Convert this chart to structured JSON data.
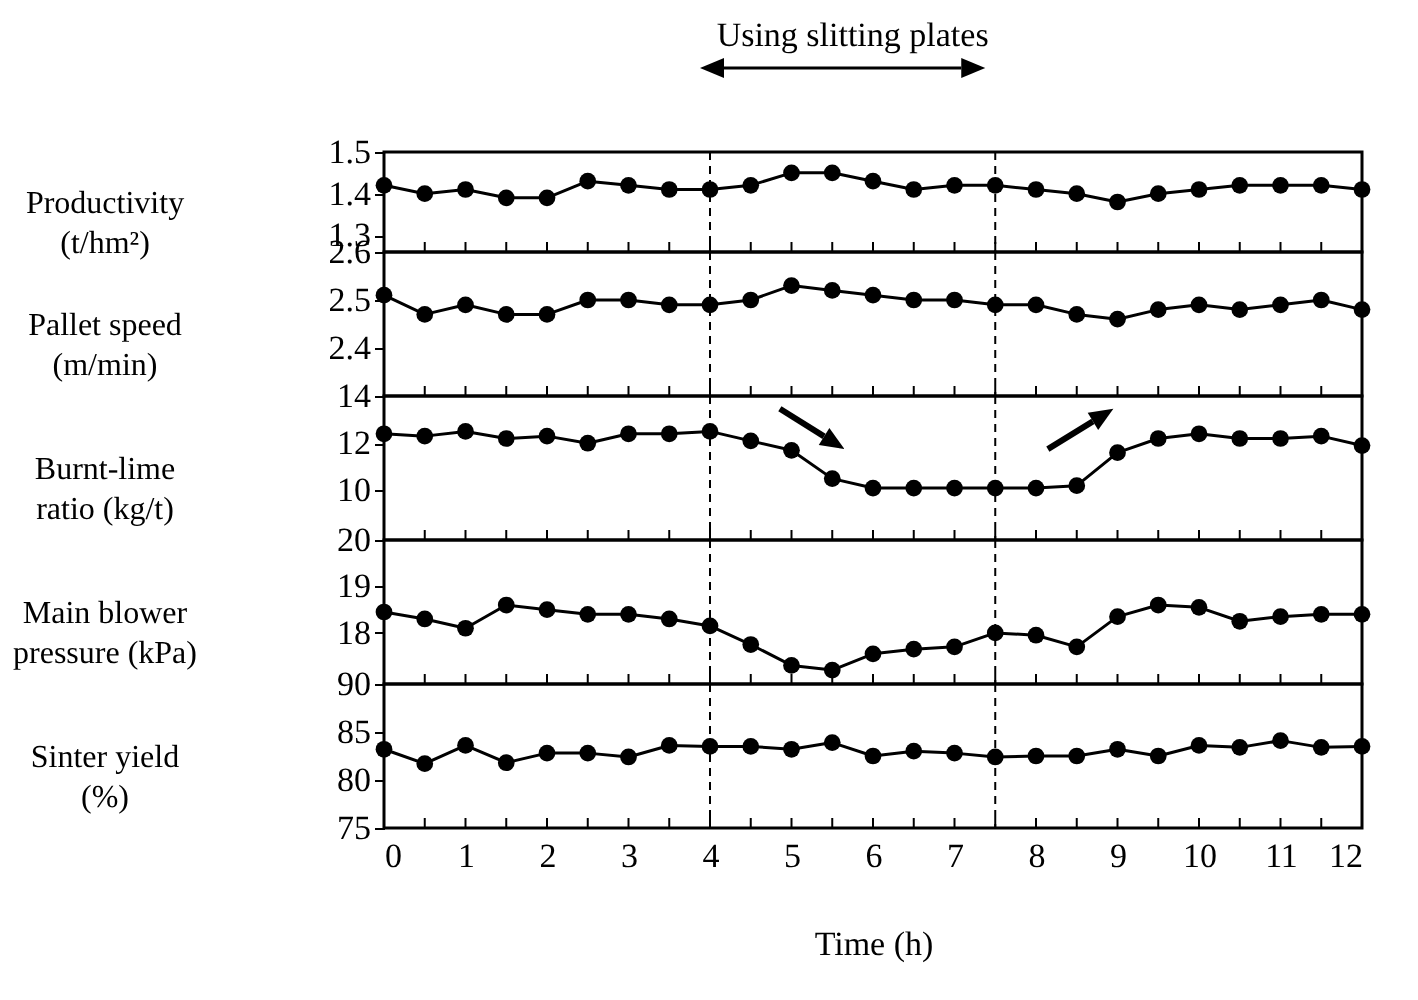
{
  "chart_data": [
    {
      "type": "line",
      "ylabel": "Productivity (t/hm²)",
      "annotations": [
        "Using slitting plates"
      ],
      "tick_labels": "y",
      "marker": "circle",
      "line_style": "solid",
      "xlim": [
        0,
        12
      ],
      "xticks": [
        0,
        {
          "value": 0.5,
          "label": null
        },
        1,
        {
          "value": 1.5,
          "label": null
        },
        2,
        {
          "value": 2.5,
          "label": null
        },
        3,
        {
          "value": 3.5,
          "label": null
        },
        4,
        {
          "value": 4.5,
          "label": null
        },
        5,
        {
          "value": 5.5,
          "label": null
        },
        6,
        {
          "value": 6.5,
          "label": null
        },
        7,
        {
          "value": 7.5,
          "label": null
        },
        8,
        {
          "value": 8.5,
          "label": null
        },
        9,
        {
          "value": 9.5,
          "label": null
        },
        10,
        {
          "value": 10.5,
          "label": null
        },
        11,
        {
          "value": 11.5,
          "label": null
        },
        12
      ],
      "ylim": [
        1.26,
        1.5
      ],
      "yticks": [
        1.3,
        1.4,
        1.5
      ],
      "ref_lines": [
        {
          "axis": "x",
          "value": 4,
          "line_style": "dashed"
        },
        {
          "axis": "x",
          "value": 7.5,
          "line_style": "dashed"
        }
      ],
      "x": [
        0,
        0.5,
        1,
        1.5,
        2,
        2.5,
        3,
        3.5,
        4,
        4.5,
        5,
        5.5,
        6,
        6.5,
        7,
        7.5,
        8,
        8.5,
        9,
        9.5,
        10,
        10.5,
        11,
        11.5,
        12
      ],
      "series": [
        {
          "color": "#000000",
          "values": [
            1.42,
            1.4,
            1.41,
            1.39,
            1.39,
            1.43,
            1.42,
            1.41,
            1.41,
            1.42,
            1.45,
            1.45,
            1.43,
            1.41,
            1.42,
            1.42,
            1.41,
            1.4,
            1.38,
            1.4,
            1.41,
            1.42,
            1.42,
            1.42,
            1.41
          ]
        }
      ]
    },
    {
      "type": "line",
      "ylabel": "Pallet speed (m/min)",
      "tick_labels": "y",
      "marker": "circle",
      "line_style": "solid",
      "xlim": [
        0,
        12
      ],
      "xticks": [
        0,
        {
          "value": 0.5,
          "label": null
        },
        1,
        {
          "value": 1.5,
          "label": null
        },
        2,
        {
          "value": 2.5,
          "label": null
        },
        3,
        {
          "value": 3.5,
          "label": null
        },
        4,
        {
          "value": 4.5,
          "label": null
        },
        5,
        {
          "value": 5.5,
          "label": null
        },
        6,
        {
          "value": 6.5,
          "label": null
        },
        7,
        {
          "value": 7.5,
          "label": null
        },
        8,
        {
          "value": 8.5,
          "label": null
        },
        9,
        {
          "value": 9.5,
          "label": null
        },
        10,
        {
          "value": 10.5,
          "label": null
        },
        11,
        {
          "value": 11.5,
          "label": null
        },
        12
      ],
      "ylim": [
        2.3,
        2.6
      ],
      "yticks": [
        2.4,
        2.5,
        2.6
      ],
      "ref_lines": [
        {
          "axis": "x",
          "value": 4,
          "line_style": "dashed"
        },
        {
          "axis": "x",
          "value": 7.5,
          "line_style": "dashed"
        }
      ],
      "x": [
        0,
        0.5,
        1,
        1.5,
        2,
        2.5,
        3,
        3.5,
        4,
        4.5,
        5,
        5.5,
        6,
        6.5,
        7,
        7.5,
        8,
        8.5,
        9,
        9.5,
        10,
        10.5,
        11,
        11.5,
        12
      ],
      "series": [
        {
          "color": "#000000",
          "values": [
            2.51,
            2.47,
            2.49,
            2.47,
            2.47,
            2.5,
            2.5,
            2.49,
            2.49,
            2.5,
            2.53,
            2.52,
            2.51,
            2.5,
            2.5,
            2.49,
            2.49,
            2.47,
            2.46,
            2.48,
            2.49,
            2.48,
            2.49,
            2.5,
            2.48
          ]
        }
      ]
    },
    {
      "type": "line",
      "ylabel": "Burnt-lime ratio (kg/t)",
      "tick_labels": "y",
      "marker": "circle",
      "line_style": "solid",
      "xlim": [
        0,
        12
      ],
      "xticks": [
        0,
        {
          "value": 0.5,
          "label": null
        },
        1,
        {
          "value": 1.5,
          "label": null
        },
        2,
        {
          "value": 2.5,
          "label": null
        },
        3,
        {
          "value": 3.5,
          "label": null
        },
        4,
        {
          "value": 4.5,
          "label": null
        },
        5,
        {
          "value": 5.5,
          "label": null
        },
        6,
        {
          "value": 6.5,
          "label": null
        },
        7,
        {
          "value": 7.5,
          "label": null
        },
        8,
        {
          "value": 8.5,
          "label": null
        },
        9,
        {
          "value": 9.5,
          "label": null
        },
        10,
        {
          "value": 10.5,
          "label": null
        },
        11,
        {
          "value": 11.5,
          "label": null
        },
        12
      ],
      "ylim": [
        7.9,
        14
      ],
      "yticks": [
        10,
        12,
        14
      ],
      "ref_lines": [
        {
          "axis": "x",
          "value": 4,
          "line_style": "dashed"
        },
        {
          "axis": "x",
          "value": 7.5,
          "line_style": "dashed"
        }
      ],
      "x": [
        0,
        0.5,
        1,
        1.5,
        2,
        2.5,
        3,
        3.5,
        4,
        4.5,
        5,
        5.5,
        6,
        6.5,
        7,
        7.5,
        8,
        8.5,
        9,
        9.5,
        10,
        10.5,
        11,
        11.5,
        12
      ],
      "series": [
        {
          "color": "#000000",
          "values": [
            12.4,
            12.3,
            12.5,
            12.2,
            12.3,
            12.0,
            12.4,
            12.4,
            12.5,
            12.1,
            11.7,
            10.5,
            10.1,
            10.1,
            10.1,
            10.1,
            10.1,
            10.2,
            11.6,
            12.2,
            12.4,
            12.2,
            12.2,
            12.3,
            11.9
          ]
        }
      ]
    },
    {
      "type": "line",
      "ylabel": "Main blower pressure (kPa)",
      "tick_labels": "y",
      "marker": "circle",
      "line_style": "solid",
      "xlim": [
        0,
        12
      ],
      "xticks": [
        0,
        {
          "value": 0.5,
          "label": null
        },
        1,
        {
          "value": 1.5,
          "label": null
        },
        2,
        {
          "value": 2.5,
          "label": null
        },
        3,
        {
          "value": 3.5,
          "label": null
        },
        4,
        {
          "value": 4.5,
          "label": null
        },
        5,
        {
          "value": 5.5,
          "label": null
        },
        6,
        {
          "value": 6.5,
          "label": null
        },
        7,
        {
          "value": 7.5,
          "label": null
        },
        8,
        {
          "value": 8.5,
          "label": null
        },
        9,
        {
          "value": 9.5,
          "label": null
        },
        10,
        {
          "value": 10.5,
          "label": null
        },
        11,
        {
          "value": 11.5,
          "label": null
        },
        12
      ],
      "ylim": [
        16.9,
        20
      ],
      "yticks": [
        18,
        19,
        20
      ],
      "ref_lines": [
        {
          "axis": "x",
          "value": 4,
          "line_style": "dashed"
        },
        {
          "axis": "x",
          "value": 7.5,
          "line_style": "dashed"
        }
      ],
      "x": [
        0,
        0.5,
        1,
        1.5,
        2,
        2.5,
        3,
        3.5,
        4,
        4.5,
        5,
        5.5,
        6,
        6.5,
        7,
        7.5,
        8,
        8.5,
        9,
        9.5,
        10,
        10.5,
        11,
        11.5,
        12
      ],
      "series": [
        {
          "color": "#000000",
          "values": [
            18.45,
            18.3,
            18.1,
            18.6,
            18.5,
            18.4,
            18.4,
            18.3,
            18.15,
            17.75,
            17.3,
            17.2,
            17.55,
            17.65,
            17.7,
            18.0,
            17.95,
            17.7,
            18.35,
            18.6,
            18.55,
            18.25,
            18.35,
            18.4,
            18.4
          ]
        }
      ]
    },
    {
      "type": "line",
      "ylabel": "Sinter yield (%)",
      "xlabel": "Time (h)",
      "marker": "circle",
      "line_style": "solid",
      "xlim": [
        0,
        12
      ],
      "xticks": [
        0,
        {
          "value": 0.5,
          "label": null
        },
        1,
        {
          "value": 1.5,
          "label": null
        },
        2,
        {
          "value": 2.5,
          "label": null
        },
        3,
        {
          "value": 3.5,
          "label": null
        },
        4,
        {
          "value": 4.5,
          "label": null
        },
        5,
        {
          "value": 5.5,
          "label": null
        },
        6,
        {
          "value": 6.5,
          "label": null
        },
        7,
        {
          "value": 7.5,
          "label": null
        },
        8,
        {
          "value": 8.5,
          "label": null
        },
        9,
        {
          "value": 9.5,
          "label": null
        },
        10,
        {
          "value": 10.5,
          "label": null
        },
        11,
        {
          "value": 11.5,
          "label": null
        },
        12
      ],
      "ylim": [
        75,
        90
      ],
      "yticks": [
        75,
        80,
        85,
        90
      ],
      "ref_lines": [
        {
          "axis": "x",
          "value": 4,
          "line_style": "dashed"
        },
        {
          "axis": "x",
          "value": 7.5,
          "line_style": "dashed"
        }
      ],
      "x": [
        0,
        0.5,
        1,
        1.5,
        2,
        2.5,
        3,
        3.5,
        4,
        4.5,
        5,
        5.5,
        6,
        6.5,
        7,
        7.5,
        8,
        8.5,
        9,
        9.5,
        10,
        10.5,
        11,
        11.5,
        12
      ],
      "series": [
        {
          "color": "#000000",
          "values": [
            83.2,
            81.7,
            83.6,
            81.8,
            82.8,
            82.8,
            82.4,
            83.6,
            83.5,
            83.5,
            83.2,
            83.9,
            82.5,
            83.0,
            82.8,
            82.4,
            82.5,
            82.5,
            83.2,
            82.5,
            83.6,
            83.4,
            84.1,
            83.4,
            83.5
          ]
        }
      ]
    }
  ]
}
